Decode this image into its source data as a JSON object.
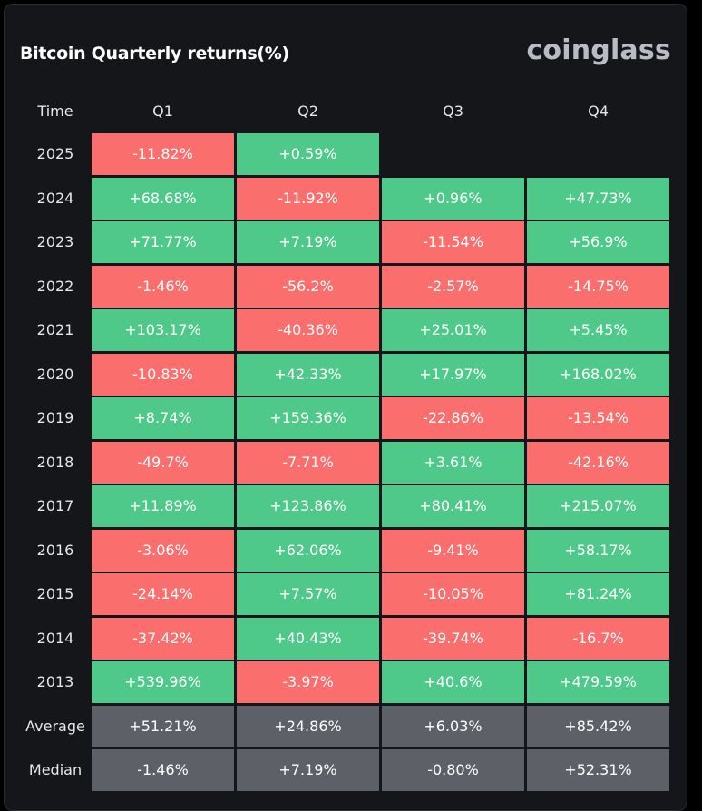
{
  "title": "Bitcoin Quarterly returns(%)",
  "brand": "coinglass",
  "colors": {
    "positive": "#4ec989",
    "negative": "#fb6e6e",
    "stat": "#5e6068"
  },
  "headers": [
    "Time",
    "Q1",
    "Q2",
    "Q3",
    "Q4"
  ],
  "rows": [
    {
      "label": "2025",
      "values": [
        "-11.82%",
        "+0.59%",
        "",
        ""
      ]
    },
    {
      "label": "2024",
      "values": [
        "+68.68%",
        "-11.92%",
        "+0.96%",
        "+47.73%"
      ]
    },
    {
      "label": "2023",
      "values": [
        "+71.77%",
        "+7.19%",
        "-11.54%",
        "+56.9%"
      ]
    },
    {
      "label": "2022",
      "values": [
        "-1.46%",
        "-56.2%",
        "-2.57%",
        "-14.75%"
      ]
    },
    {
      "label": "2021",
      "values": [
        "+103.17%",
        "-40.36%",
        "+25.01%",
        "+5.45%"
      ]
    },
    {
      "label": "2020",
      "values": [
        "-10.83%",
        "+42.33%",
        "+17.97%",
        "+168.02%"
      ]
    },
    {
      "label": "2019",
      "values": [
        "+8.74%",
        "+159.36%",
        "-22.86%",
        "-13.54%"
      ]
    },
    {
      "label": "2018",
      "values": [
        "-49.7%",
        "-7.71%",
        "+3.61%",
        "-42.16%"
      ]
    },
    {
      "label": "2017",
      "values": [
        "+11.89%",
        "+123.86%",
        "+80.41%",
        "+215.07%"
      ]
    },
    {
      "label": "2016",
      "values": [
        "-3.06%",
        "+62.06%",
        "-9.41%",
        "+58.17%"
      ]
    },
    {
      "label": "2015",
      "values": [
        "-24.14%",
        "+7.57%",
        "-10.05%",
        "+81.24%"
      ]
    },
    {
      "label": "2014",
      "values": [
        "-37.42%",
        "+40.43%",
        "-39.74%",
        "-16.7%"
      ]
    },
    {
      "label": "2013",
      "values": [
        "+539.96%",
        "-3.97%",
        "+40.6%",
        "+479.59%"
      ]
    }
  ],
  "stats": [
    {
      "label": "Average",
      "values": [
        "+51.21%",
        "+24.86%",
        "+6.03%",
        "+85.42%"
      ]
    },
    {
      "label": "Median",
      "values": [
        "-1.46%",
        "+7.19%",
        "-0.80%",
        "+52.31%"
      ]
    }
  ]
}
